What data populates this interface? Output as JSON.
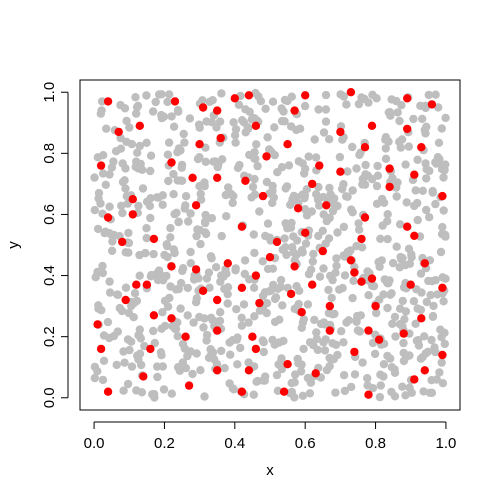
{
  "chart_data": {
    "type": "scatter",
    "title": "",
    "xlabel": "x",
    "ylabel": "y",
    "xlim": [
      -0.04,
      1.04
    ],
    "ylim": [
      -0.04,
      1.04
    ],
    "x_ticks": [
      0.0,
      0.2,
      0.4,
      0.6,
      0.8,
      1.0
    ],
    "y_ticks": [
      0.0,
      0.2,
      0.4,
      0.6,
      0.8,
      1.0
    ],
    "x_tick_labels": [
      "0.0",
      "0.2",
      "0.4",
      "0.6",
      "0.8",
      "1.0"
    ],
    "y_tick_labels": [
      "0.0",
      "0.2",
      "0.4",
      "0.6",
      "0.8",
      "1.0"
    ],
    "grid": false,
    "legend": "none",
    "background_series": {
      "color": "#bebebe",
      "count": 900,
      "distribution": "uniform on [0,1] x [0,1]",
      "seed": 20240611
    },
    "series": [
      {
        "color": "#ff0000",
        "points": [
          [
            0.04,
            0.97
          ],
          [
            0.23,
            0.97
          ],
          [
            0.31,
            0.95
          ],
          [
            0.4,
            0.98
          ],
          [
            0.44,
            0.99
          ],
          [
            0.6,
            0.99
          ],
          [
            0.73,
            1.0
          ],
          [
            0.89,
            0.98
          ],
          [
            0.96,
            0.96
          ],
          [
            0.07,
            0.87
          ],
          [
            0.13,
            0.89
          ],
          [
            0.35,
            0.94
          ],
          [
            0.57,
            0.94
          ],
          [
            0.46,
            0.89
          ],
          [
            0.7,
            0.87
          ],
          [
            0.79,
            0.89
          ],
          [
            0.89,
            0.88
          ],
          [
            0.3,
            0.83
          ],
          [
            0.36,
            0.85
          ],
          [
            0.55,
            0.83
          ],
          [
            0.77,
            0.82
          ],
          [
            0.93,
            0.82
          ],
          [
            0.02,
            0.76
          ],
          [
            0.22,
            0.77
          ],
          [
            0.49,
            0.79
          ],
          [
            0.64,
            0.76
          ],
          [
            0.7,
            0.74
          ],
          [
            0.84,
            0.75
          ],
          [
            0.91,
            0.73
          ],
          [
            0.28,
            0.72
          ],
          [
            0.35,
            0.72
          ],
          [
            0.43,
            0.71
          ],
          [
            0.62,
            0.7
          ],
          [
            0.84,
            0.69
          ],
          [
            0.99,
            0.66
          ],
          [
            0.11,
            0.65
          ],
          [
            0.29,
            0.63
          ],
          [
            0.48,
            0.66
          ],
          [
            0.58,
            0.62
          ],
          [
            0.66,
            0.63
          ],
          [
            0.77,
            0.59
          ],
          [
            0.89,
            0.56
          ],
          [
            0.04,
            0.59
          ],
          [
            0.11,
            0.6
          ],
          [
            0.42,
            0.56
          ],
          [
            0.6,
            0.54
          ],
          [
            0.76,
            0.52
          ],
          [
            0.91,
            0.53
          ],
          [
            0.08,
            0.51
          ],
          [
            0.17,
            0.52
          ],
          [
            0.52,
            0.51
          ],
          [
            0.65,
            0.48
          ],
          [
            0.73,
            0.45
          ],
          [
            0.22,
            0.43
          ],
          [
            0.29,
            0.42
          ],
          [
            0.38,
            0.44
          ],
          [
            0.46,
            0.4
          ],
          [
            0.5,
            0.46
          ],
          [
            0.57,
            0.43
          ],
          [
            0.74,
            0.41
          ],
          [
            0.79,
            0.39
          ],
          [
            0.94,
            0.44
          ],
          [
            0.12,
            0.37
          ],
          [
            0.31,
            0.35
          ],
          [
            0.42,
            0.36
          ],
          [
            0.62,
            0.37
          ],
          [
            0.76,
            0.38
          ],
          [
            0.9,
            0.37
          ],
          [
            0.99,
            0.36
          ],
          [
            0.09,
            0.32
          ],
          [
            0.15,
            0.37
          ],
          [
            0.35,
            0.32
          ],
          [
            0.56,
            0.34
          ],
          [
            0.67,
            0.3
          ],
          [
            0.8,
            0.3
          ],
          [
            0.17,
            0.27
          ],
          [
            0.22,
            0.26
          ],
          [
            0.47,
            0.31
          ],
          [
            0.59,
            0.28
          ],
          [
            0.67,
            0.22
          ],
          [
            0.93,
            0.26
          ],
          [
            0.01,
            0.24
          ],
          [
            0.26,
            0.2
          ],
          [
            0.35,
            0.22
          ],
          [
            0.45,
            0.2
          ],
          [
            0.78,
            0.22
          ],
          [
            0.81,
            0.19
          ],
          [
            0.88,
            0.21
          ],
          [
            0.02,
            0.16
          ],
          [
            0.16,
            0.16
          ],
          [
            0.35,
            0.09
          ],
          [
            0.46,
            0.16
          ],
          [
            0.55,
            0.11
          ],
          [
            0.74,
            0.15
          ],
          [
            0.94,
            0.09
          ],
          [
            0.99,
            0.14
          ],
          [
            0.04,
            0.02
          ],
          [
            0.14,
            0.07
          ],
          [
            0.27,
            0.04
          ],
          [
            0.42,
            0.02
          ],
          [
            0.44,
            0.09
          ],
          [
            0.54,
            0.02
          ],
          [
            0.63,
            0.08
          ],
          [
            0.78,
            0.01
          ],
          [
            0.91,
            0.06
          ]
        ]
      }
    ]
  }
}
